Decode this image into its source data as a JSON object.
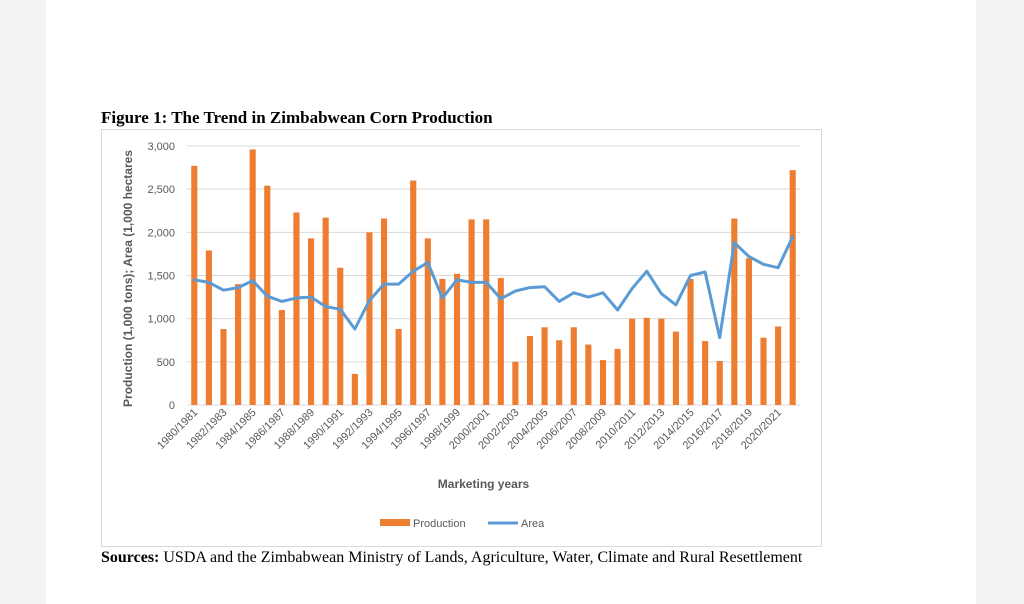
{
  "figure": {
    "title": "Figure 1: The Trend in Zimbabwean Corn Production",
    "sources_label": "Sources:",
    "sources_text": "USDA and the Zimbabwean Ministry of Lands, Agriculture, Water, Climate and Rural Resettlement"
  },
  "colors": {
    "production": "#ED7D31",
    "area": "#5B9BD5",
    "grid": "#D9D9D9",
    "text": "#595959"
  },
  "chart_data": {
    "type": "bar",
    "title": "",
    "xlabel": "Marketing years",
    "ylabel": "Production (1,000 tons); Area (1,000 hectares",
    "ylim": [
      0,
      3000
    ],
    "yticks": [
      "0",
      "500",
      "1,000",
      "1,500",
      "2,000",
      "2,500",
      "3,000"
    ],
    "grid": true,
    "legend_position": "bottom",
    "categories": [
      "1980/1981",
      "1981/1982",
      "1982/1983",
      "1983/1984",
      "1984/1985",
      "1985/1986",
      "1986/1987",
      "1987/1988",
      "1988/1989",
      "1989/1990",
      "1990/1991",
      "1991/1992",
      "1992/1993",
      "1993/1994",
      "1994/1995",
      "1995/1996",
      "1996/1997",
      "1997/1998",
      "1998/1999",
      "1999/2000",
      "2000/2001",
      "2001/2002",
      "2002/2003",
      "2003/2004",
      "2004/2005",
      "2005/2006",
      "2006/2007",
      "2007/2008",
      "2008/2009",
      "2009/2010",
      "2010/2011",
      "2011/2012",
      "2012/2013",
      "2013/2014",
      "2014/2015",
      "2015/2016",
      "2016/2017",
      "2017/2018",
      "2018/2019",
      "2019/2020",
      "2020/2021",
      "2021/2022"
    ],
    "xticks_shown": [
      "1980/1981",
      "1982/1983",
      "1984/1985",
      "1986/1987",
      "1988/1989",
      "1990/1991",
      "1992/1993",
      "1994/1995",
      "1996/1997",
      "1998/1999",
      "2000/2001",
      "2002/2003",
      "2004/2005",
      "2006/2007",
      "2008/2009",
      "2010/2011",
      "2012/2013",
      "2014/2015",
      "2016/2017",
      "2018/2019",
      "2020/2021"
    ],
    "series": [
      {
        "name": "Production",
        "type": "bar",
        "values": [
          2770,
          1790,
          880,
          1400,
          2960,
          2540,
          1100,
          2230,
          1930,
          2170,
          1590,
          360,
          2000,
          2160,
          880,
          2600,
          1930,
          1460,
          1520,
          2150,
          2150,
          1470,
          500,
          800,
          900,
          750,
          900,
          700,
          520,
          650,
          1000,
          1010,
          1000,
          850,
          1460,
          740,
          510,
          2160,
          1700,
          780,
          910,
          2720
        ]
      },
      {
        "name": "Area",
        "type": "line",
        "values": [
          1450,
          1420,
          1330,
          1360,
          1440,
          1260,
          1200,
          1240,
          1250,
          1140,
          1110,
          880,
          1210,
          1400,
          1400,
          1550,
          1650,
          1240,
          1450,
          1420,
          1420,
          1230,
          1320,
          1360,
          1370,
          1200,
          1300,
          1250,
          1300,
          1100,
          1350,
          1550,
          1290,
          1160,
          1500,
          1540,
          780,
          1880,
          1720,
          1630,
          1590,
          1950
        ]
      }
    ]
  }
}
